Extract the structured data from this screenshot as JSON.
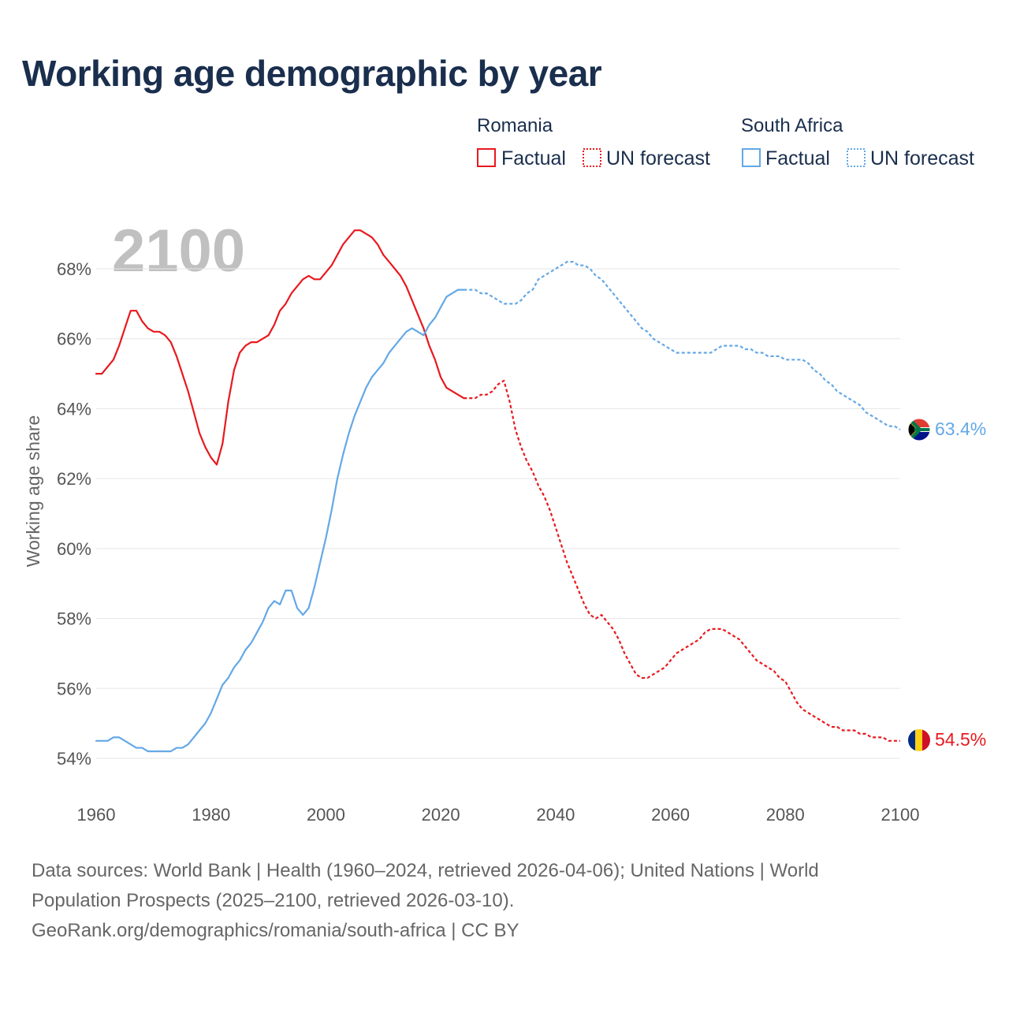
{
  "title": "Working age demographic by year",
  "legend": {
    "groups": [
      {
        "name": "Romania",
        "color": "#e8191e",
        "factual_label": "Factual",
        "forecast_label": "UN forecast"
      },
      {
        "name": "South Africa",
        "color": "#64a8e6",
        "factual_label": "Factual",
        "forecast_label": "UN forecast"
      }
    ]
  },
  "year_watermark": "2100",
  "footer": {
    "line1": "Data sources: World Bank | Health (1960–2024, retrieved 2026-04-06); United Nations | World",
    "line2": "Population Prospects (2025–2100, retrieved 2026-03-10).",
    "line3": "GeoRank.org/demographics/romania/south-africa | CC BY"
  },
  "chart_data": {
    "type": "line",
    "title": "Working age demographic by year",
    "xlabel": "",
    "ylabel": "Working age share",
    "xlim": [
      1960,
      2100
    ],
    "ylim": [
      53.6,
      69.6
    ],
    "x_ticks": [
      1960,
      1980,
      2000,
      2020,
      2040,
      2060,
      2080,
      2100
    ],
    "x_tick_labels": [
      "1960",
      "1980",
      "2000",
      "2020",
      "2040",
      "2060",
      "2080",
      "2100"
    ],
    "y_ticks": [
      54,
      56,
      58,
      60,
      62,
      64,
      66,
      68
    ],
    "y_tick_labels": [
      "54%",
      "56%",
      "58%",
      "60%",
      "62%",
      "64%",
      "66%",
      "68%"
    ],
    "grid": true,
    "series": [
      {
        "name": "Romania",
        "color": "#e8191e",
        "end_label": "54.5%",
        "factual": [
          [
            1960,
            65.0
          ],
          [
            1961,
            65.0
          ],
          [
            1962,
            65.2
          ],
          [
            1963,
            65.4
          ],
          [
            1964,
            65.8
          ],
          [
            1965,
            66.3
          ],
          [
            1966,
            66.8
          ],
          [
            1967,
            66.8
          ],
          [
            1968,
            66.5
          ],
          [
            1969,
            66.3
          ],
          [
            1970,
            66.2
          ],
          [
            1971,
            66.2
          ],
          [
            1972,
            66.1
          ],
          [
            1973,
            65.9
          ],
          [
            1974,
            65.5
          ],
          [
            1975,
            65.0
          ],
          [
            1976,
            64.5
          ],
          [
            1977,
            63.9
          ],
          [
            1978,
            63.3
          ],
          [
            1979,
            62.9
          ],
          [
            1980,
            62.6
          ],
          [
            1981,
            62.4
          ],
          [
            1982,
            63.0
          ],
          [
            1983,
            64.2
          ],
          [
            1984,
            65.1
          ],
          [
            1985,
            65.6
          ],
          [
            1986,
            65.8
          ],
          [
            1987,
            65.9
          ],
          [
            1988,
            65.9
          ],
          [
            1989,
            66.0
          ],
          [
            1990,
            66.1
          ],
          [
            1991,
            66.4
          ],
          [
            1992,
            66.8
          ],
          [
            1993,
            67.0
          ],
          [
            1994,
            67.3
          ],
          [
            1995,
            67.5
          ],
          [
            1996,
            67.7
          ],
          [
            1997,
            67.8
          ],
          [
            1998,
            67.7
          ],
          [
            1999,
            67.7
          ],
          [
            2000,
            67.9
          ],
          [
            2001,
            68.1
          ],
          [
            2002,
            68.4
          ],
          [
            2003,
            68.7
          ],
          [
            2004,
            68.9
          ],
          [
            2005,
            69.1
          ],
          [
            2006,
            69.1
          ],
          [
            2007,
            69.0
          ],
          [
            2008,
            68.9
          ],
          [
            2009,
            68.7
          ],
          [
            2010,
            68.4
          ],
          [
            2011,
            68.2
          ],
          [
            2012,
            68.0
          ],
          [
            2013,
            67.8
          ],
          [
            2014,
            67.5
          ],
          [
            2015,
            67.1
          ],
          [
            2016,
            66.7
          ],
          [
            2017,
            66.3
          ],
          [
            2018,
            65.8
          ],
          [
            2019,
            65.4
          ],
          [
            2020,
            64.9
          ],
          [
            2021,
            64.6
          ],
          [
            2022,
            64.5
          ],
          [
            2023,
            64.4
          ],
          [
            2024,
            64.3
          ]
        ],
        "forecast": [
          [
            2024,
            64.3
          ],
          [
            2026,
            64.3
          ],
          [
            2027,
            64.4
          ],
          [
            2028,
            64.4
          ],
          [
            2029,
            64.5
          ],
          [
            2030,
            64.7
          ],
          [
            2031,
            64.8
          ],
          [
            2032,
            64.2
          ],
          [
            2033,
            63.4
          ],
          [
            2034,
            62.9
          ],
          [
            2035,
            62.5
          ],
          [
            2036,
            62.2
          ],
          [
            2037,
            61.8
          ],
          [
            2038,
            61.5
          ],
          [
            2039,
            61.1
          ],
          [
            2040,
            60.6
          ],
          [
            2041,
            60.1
          ],
          [
            2042,
            59.6
          ],
          [
            2043,
            59.2
          ],
          [
            2044,
            58.8
          ],
          [
            2045,
            58.4
          ],
          [
            2046,
            58.1
          ],
          [
            2047,
            58.0
          ],
          [
            2048,
            58.1
          ],
          [
            2049,
            57.9
          ],
          [
            2050,
            57.7
          ],
          [
            2051,
            57.4
          ],
          [
            2052,
            57.0
          ],
          [
            2053,
            56.7
          ],
          [
            2054,
            56.4
          ],
          [
            2055,
            56.3
          ],
          [
            2056,
            56.3
          ],
          [
            2057,
            56.4
          ],
          [
            2058,
            56.5
          ],
          [
            2059,
            56.6
          ],
          [
            2060,
            56.8
          ],
          [
            2061,
            57.0
          ],
          [
            2062,
            57.1
          ],
          [
            2063,
            57.2
          ],
          [
            2064,
            57.3
          ],
          [
            2065,
            57.4
          ],
          [
            2066,
            57.6
          ],
          [
            2067,
            57.7
          ],
          [
            2068,
            57.7
          ],
          [
            2069,
            57.7
          ],
          [
            2070,
            57.6
          ],
          [
            2071,
            57.5
          ],
          [
            2072,
            57.4
          ],
          [
            2073,
            57.2
          ],
          [
            2074,
            57.0
          ],
          [
            2075,
            56.8
          ],
          [
            2076,
            56.7
          ],
          [
            2077,
            56.6
          ],
          [
            2078,
            56.5
          ],
          [
            2079,
            56.3
          ],
          [
            2080,
            56.2
          ],
          [
            2081,
            55.9
          ],
          [
            2082,
            55.6
          ],
          [
            2083,
            55.4
          ],
          [
            2084,
            55.3
          ],
          [
            2085,
            55.2
          ],
          [
            2086,
            55.1
          ],
          [
            2087,
            55.0
          ],
          [
            2088,
            54.9
          ],
          [
            2089,
            54.9
          ],
          [
            2090,
            54.8
          ],
          [
            2091,
            54.8
          ],
          [
            2092,
            54.8
          ],
          [
            2093,
            54.7
          ],
          [
            2094,
            54.7
          ],
          [
            2095,
            54.6
          ],
          [
            2096,
            54.6
          ],
          [
            2097,
            54.6
          ],
          [
            2098,
            54.5
          ],
          [
            2099,
            54.5
          ],
          [
            2100,
            54.5
          ]
        ]
      },
      {
        "name": "South Africa",
        "color": "#64a8e6",
        "end_label": "63.4%",
        "factual": [
          [
            1960,
            54.5
          ],
          [
            1961,
            54.5
          ],
          [
            1962,
            54.5
          ],
          [
            1963,
            54.6
          ],
          [
            1964,
            54.6
          ],
          [
            1965,
            54.5
          ],
          [
            1966,
            54.4
          ],
          [
            1967,
            54.3
          ],
          [
            1968,
            54.3
          ],
          [
            1969,
            54.2
          ],
          [
            1970,
            54.2
          ],
          [
            1971,
            54.2
          ],
          [
            1972,
            54.2
          ],
          [
            1973,
            54.2
          ],
          [
            1974,
            54.3
          ],
          [
            1975,
            54.3
          ],
          [
            1976,
            54.4
          ],
          [
            1977,
            54.6
          ],
          [
            1978,
            54.8
          ],
          [
            1979,
            55.0
          ],
          [
            1980,
            55.3
          ],
          [
            1981,
            55.7
          ],
          [
            1982,
            56.1
          ],
          [
            1983,
            56.3
          ],
          [
            1984,
            56.6
          ],
          [
            1985,
            56.8
          ],
          [
            1986,
            57.1
          ],
          [
            1987,
            57.3
          ],
          [
            1988,
            57.6
          ],
          [
            1989,
            57.9
          ],
          [
            1990,
            58.3
          ],
          [
            1991,
            58.5
          ],
          [
            1992,
            58.4
          ],
          [
            1993,
            58.8
          ],
          [
            1994,
            58.8
          ],
          [
            1995,
            58.3
          ],
          [
            1996,
            58.1
          ],
          [
            1997,
            58.3
          ],
          [
            1998,
            58.9
          ],
          [
            1999,
            59.6
          ],
          [
            2000,
            60.3
          ],
          [
            2001,
            61.1
          ],
          [
            2002,
            62.0
          ],
          [
            2003,
            62.7
          ],
          [
            2004,
            63.3
          ],
          [
            2005,
            63.8
          ],
          [
            2006,
            64.2
          ],
          [
            2007,
            64.6
          ],
          [
            2008,
            64.9
          ],
          [
            2009,
            65.1
          ],
          [
            2010,
            65.3
          ],
          [
            2011,
            65.6
          ],
          [
            2012,
            65.8
          ],
          [
            2013,
            66.0
          ],
          [
            2014,
            66.2
          ],
          [
            2015,
            66.3
          ],
          [
            2016,
            66.2
          ],
          [
            2017,
            66.1
          ],
          [
            2018,
            66.4
          ],
          [
            2019,
            66.6
          ],
          [
            2020,
            66.9
          ],
          [
            2021,
            67.2
          ],
          [
            2022,
            67.3
          ],
          [
            2023,
            67.4
          ],
          [
            2024,
            67.4
          ]
        ],
        "forecast": [
          [
            2024,
            67.4
          ],
          [
            2026,
            67.4
          ],
          [
            2027,
            67.3
          ],
          [
            2028,
            67.3
          ],
          [
            2029,
            67.2
          ],
          [
            2030,
            67.1
          ],
          [
            2031,
            67.0
          ],
          [
            2032,
            67.0
          ],
          [
            2033,
            67.0
          ],
          [
            2034,
            67.1
          ],
          [
            2035,
            67.3
          ],
          [
            2036,
            67.4
          ],
          [
            2037,
            67.7
          ],
          [
            2038,
            67.8
          ],
          [
            2039,
            67.9
          ],
          [
            2040,
            68.0
          ],
          [
            2041,
            68.1
          ],
          [
            2042,
            68.2
          ],
          [
            2043,
            68.2
          ],
          [
            2044,
            68.1
          ],
          [
            2045,
            68.1
          ],
          [
            2046,
            68.0
          ],
          [
            2047,
            67.8
          ],
          [
            2048,
            67.7
          ],
          [
            2049,
            67.5
          ],
          [
            2050,
            67.3
          ],
          [
            2051,
            67.1
          ],
          [
            2052,
            66.9
          ],
          [
            2053,
            66.7
          ],
          [
            2054,
            66.5
          ],
          [
            2055,
            66.3
          ],
          [
            2056,
            66.2
          ],
          [
            2057,
            66.0
          ],
          [
            2058,
            65.9
          ],
          [
            2059,
            65.8
          ],
          [
            2060,
            65.7
          ],
          [
            2061,
            65.6
          ],
          [
            2062,
            65.6
          ],
          [
            2063,
            65.6
          ],
          [
            2064,
            65.6
          ],
          [
            2065,
            65.6
          ],
          [
            2066,
            65.6
          ],
          [
            2067,
            65.6
          ],
          [
            2068,
            65.7
          ],
          [
            2069,
            65.8
          ],
          [
            2070,
            65.8
          ],
          [
            2071,
            65.8
          ],
          [
            2072,
            65.8
          ],
          [
            2073,
            65.7
          ],
          [
            2074,
            65.7
          ],
          [
            2075,
            65.6
          ],
          [
            2076,
            65.6
          ],
          [
            2077,
            65.5
          ],
          [
            2078,
            65.5
          ],
          [
            2079,
            65.5
          ],
          [
            2080,
            65.4
          ],
          [
            2081,
            65.4
          ],
          [
            2082,
            65.4
          ],
          [
            2083,
            65.4
          ],
          [
            2084,
            65.3
          ],
          [
            2085,
            65.1
          ],
          [
            2086,
            65.0
          ],
          [
            2087,
            64.8
          ],
          [
            2088,
            64.7
          ],
          [
            2089,
            64.5
          ],
          [
            2090,
            64.4
          ],
          [
            2091,
            64.3
          ],
          [
            2092,
            64.2
          ],
          [
            2093,
            64.1
          ],
          [
            2094,
            63.9
          ],
          [
            2095,
            63.8
          ],
          [
            2096,
            63.7
          ],
          [
            2097,
            63.6
          ],
          [
            2098,
            63.5
          ],
          [
            2099,
            63.5
          ],
          [
            2100,
            63.4
          ]
        ]
      }
    ]
  }
}
